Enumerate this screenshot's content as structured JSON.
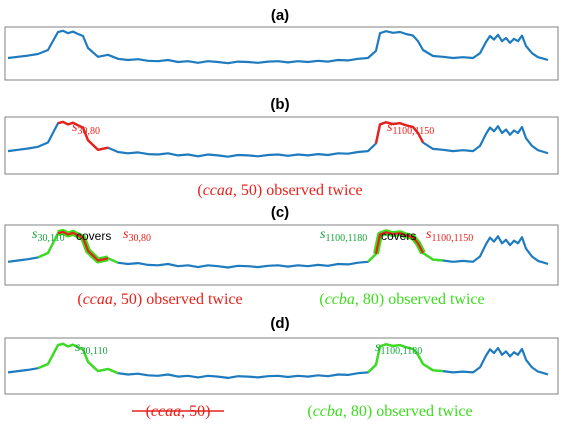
{
  "colors": {
    "series": "#1f7bbf",
    "red": "#e8211b",
    "green": "#3ddc1e",
    "dark_green": "#15a23a",
    "frame": "#808080",
    "text": "#000000"
  },
  "panels": [
    {
      "title": "(a)",
      "labels": [],
      "captions": []
    },
    {
      "title": "(b)",
      "labels": [
        {
          "s": "s",
          "sub": "30,80",
          "color": "red"
        },
        {
          "s": "s",
          "sub": "1100,1150",
          "color": "red"
        }
      ],
      "captions": [
        {
          "segments": [
            {
              "t": "(",
              "c": "red"
            },
            {
              "t": "ccaa",
              "c": "red",
              "i": true
            },
            {
              "t": ", 50)",
              "c": "red"
            },
            {
              "t": " observed twice",
              "c": "red"
            }
          ]
        }
      ]
    },
    {
      "title": "(c)",
      "labels": [
        {
          "s": "s",
          "sub": "30,110",
          "color": "dark_green"
        },
        {
          "text": "covers",
          "color": "text"
        },
        {
          "s": "s",
          "sub": "30,80",
          "color": "red"
        },
        {
          "s": "s",
          "sub": "1100,1180",
          "color": "dark_green"
        },
        {
          "text": "covers",
          "color": "text"
        },
        {
          "s": "s",
          "sub": "1100,1150",
          "color": "red"
        }
      ],
      "captions": [
        {
          "segments": [
            {
              "t": "(",
              "c": "red"
            },
            {
              "t": "ccaa",
              "c": "red",
              "i": true
            },
            {
              "t": ", 50)",
              "c": "red"
            },
            {
              "t": " observed twice",
              "c": "red"
            }
          ]
        },
        {
          "segments": [
            {
              "t": "(",
              "c": "green"
            },
            {
              "t": "ccba",
              "c": "green",
              "i": true
            },
            {
              "t": ", 80)",
              "c": "green"
            },
            {
              "t": " observed twice",
              "c": "green"
            }
          ]
        }
      ]
    },
    {
      "title": "(d)",
      "labels": [
        {
          "s": "s",
          "sub": "30,110",
          "color": "dark_green"
        },
        {
          "s": "s",
          "sub": "1100,1180",
          "color": "dark_green"
        }
      ],
      "captions": [
        {
          "segments": [
            {
              "t": "(",
              "c": "red"
            },
            {
              "t": "ccaa",
              "c": "red",
              "i": true
            },
            {
              "t": ", 50)",
              "c": "red"
            }
          ],
          "strike": true
        },
        {
          "segments": [
            {
              "t": "(",
              "c": "green"
            },
            {
              "t": "ccba",
              "c": "green",
              "i": true
            },
            {
              "t": ", 80)",
              "c": "green"
            },
            {
              "t": " observed twice",
              "c": "green"
            }
          ]
        }
      ]
    }
  ]
}
